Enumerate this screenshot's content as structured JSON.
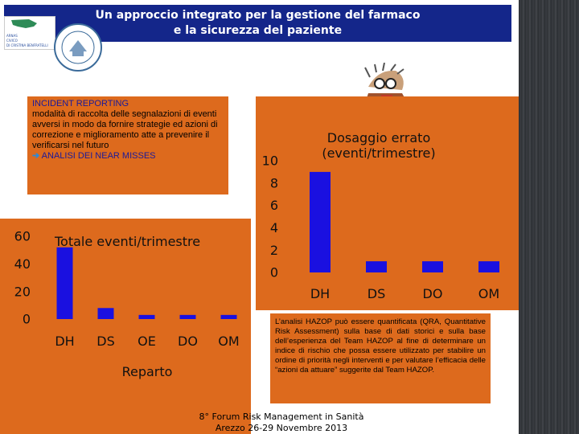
{
  "header": {
    "title_line1": "Un approccio integrato per la gestione del farmaco",
    "title_line2": "e la sicurezza del paziente",
    "logo_text_1": "ARNAS",
    "logo_text_2": "CIVICO",
    "logo_text_3": "DI CRISTINA BENFRATELLI"
  },
  "incident": {
    "heading": "INCIDENT REPORTING",
    "body": "modalità di raccolta delle segnalazioni di eventi avversi in modo da fornire strategie ed azioni di correzione e miglioramento atte a prevenire il verificarsi nel futuro",
    "arrow": "➔",
    "link": "ANALISI DEI NEAR MISSES"
  },
  "info": {
    "text": "L’analisi HAZOP può essere quantificata (QRA, Quantitative Risk Assessment) sulla base di dati storici e sulla base dell’esperienza del Team HAZOP al fine di determinare un indice di rischio che possa essere utilizzato per stabilire un ordine di priorità negli interventi e per valutare l’efficacia delle “azioni da attuare” suggerite dal Team HAZOP."
  },
  "footer": {
    "line1": "8° Forum Risk Management in Sanità",
    "line2": "Arezzo 26-29 Novembre 2013"
  },
  "colors": {
    "title_bg": "#14268a",
    "panel": "#dd6a1d",
    "bar": "#1a10e0"
  },
  "chart_data": [
    {
      "type": "bar",
      "title": "Totale eventi/trimestre",
      "xlabel": "Reparto",
      "ylabel": "",
      "categories": [
        "DH",
        "DS",
        "OE",
        "DO",
        "OM"
      ],
      "values": [
        52,
        8,
        3,
        3,
        3
      ],
      "ylim": [
        0,
        60
      ],
      "yticks": [
        "0",
        "20",
        "40",
        "60"
      ],
      "grid": false
    },
    {
      "type": "bar",
      "title": "Dosaggio errato (eventi/trimestre)",
      "xlabel": "",
      "ylabel": "",
      "categories": [
        "DH",
        "DS",
        "DO",
        "OM"
      ],
      "values": [
        9,
        1,
        1,
        1
      ],
      "ylim": [
        0,
        10
      ],
      "yticks": [
        "0",
        "2",
        "4",
        "6",
        "8",
        "10"
      ],
      "grid": false
    }
  ]
}
